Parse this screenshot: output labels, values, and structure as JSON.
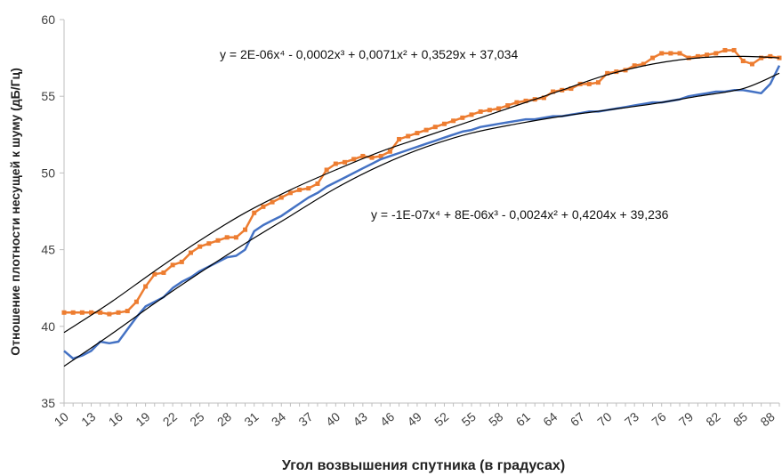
{
  "chart_data": {
    "type": "line",
    "xlabel": "Угол возвышения спутника (в градусах)",
    "ylabel": "Отношение плотности несущей к шуму (дБ/Гц)",
    "xlim": [
      10,
      89
    ],
    "ylim": [
      35,
      60
    ],
    "y_ticks": [
      35,
      40,
      45,
      50,
      55,
      60
    ],
    "x_tick_labels": [
      "10",
      "13",
      "16",
      "19",
      "22",
      "25",
      "28",
      "31",
      "34",
      "37",
      "40",
      "43",
      "46",
      "49",
      "52",
      "55",
      "58",
      "61",
      "64",
      "67",
      "70",
      "73",
      "76",
      "79",
      "82",
      "85",
      "88"
    ],
    "grid": false,
    "series": [
      {
        "color": "#ED7D31",
        "marker": "square",
        "points": [
          [
            10,
            40.9
          ],
          [
            11,
            40.9
          ],
          [
            12,
            40.9
          ],
          [
            13,
            40.9
          ],
          [
            14,
            40.9
          ],
          [
            15,
            40.8
          ],
          [
            16,
            40.9
          ],
          [
            17,
            41.0
          ],
          [
            18,
            41.6
          ],
          [
            19,
            42.6
          ],
          [
            20,
            43.4
          ],
          [
            21,
            43.5
          ],
          [
            22,
            44.0
          ],
          [
            23,
            44.2
          ],
          [
            24,
            44.8
          ],
          [
            25,
            45.2
          ],
          [
            26,
            45.4
          ],
          [
            27,
            45.6
          ],
          [
            28,
            45.8
          ],
          [
            29,
            45.8
          ],
          [
            30,
            46.3
          ],
          [
            31,
            47.4
          ],
          [
            32,
            47.8
          ],
          [
            33,
            48.1
          ],
          [
            34,
            48.4
          ],
          [
            35,
            48.7
          ],
          [
            36,
            48.9
          ],
          [
            37,
            49.0
          ],
          [
            38,
            49.3
          ],
          [
            39,
            50.2
          ],
          [
            40,
            50.6
          ],
          [
            41,
            50.7
          ],
          [
            42,
            50.9
          ],
          [
            43,
            51.1
          ],
          [
            44,
            51.0
          ],
          [
            45,
            51.1
          ],
          [
            46,
            51.4
          ],
          [
            47,
            52.2
          ],
          [
            48,
            52.4
          ],
          [
            49,
            52.6
          ],
          [
            50,
            52.8
          ],
          [
            51,
            53.0
          ],
          [
            52,
            53.2
          ],
          [
            53,
            53.4
          ],
          [
            54,
            53.6
          ],
          [
            55,
            53.8
          ],
          [
            56,
            54.0
          ],
          [
            57,
            54.1
          ],
          [
            58,
            54.2
          ],
          [
            59,
            54.4
          ],
          [
            60,
            54.6
          ],
          [
            61,
            54.7
          ],
          [
            62,
            54.8
          ],
          [
            63,
            54.9
          ],
          [
            64,
            55.3
          ],
          [
            65,
            55.4
          ],
          [
            66,
            55.5
          ],
          [
            67,
            55.8
          ],
          [
            68,
            55.8
          ],
          [
            69,
            55.9
          ],
          [
            70,
            56.5
          ],
          [
            71,
            56.6
          ],
          [
            72,
            56.7
          ],
          [
            73,
            57.0
          ],
          [
            74,
            57.1
          ],
          [
            75,
            57.5
          ],
          [
            76,
            57.8
          ],
          [
            77,
            57.8
          ],
          [
            78,
            57.8
          ],
          [
            79,
            57.5
          ],
          [
            80,
            57.6
          ],
          [
            81,
            57.7
          ],
          [
            82,
            57.8
          ],
          [
            83,
            58.0
          ],
          [
            84,
            58.0
          ],
          [
            85,
            57.3
          ],
          [
            86,
            57.1
          ],
          [
            87,
            57.5
          ],
          [
            88,
            57.6
          ],
          [
            89,
            57.5
          ]
        ]
      },
      {
        "color": "#4472C4",
        "marker": "none",
        "points": [
          [
            10,
            38.4
          ],
          [
            11,
            37.9
          ],
          [
            12,
            38.1
          ],
          [
            13,
            38.4
          ],
          [
            14,
            39.0
          ],
          [
            15,
            38.9
          ],
          [
            16,
            39.0
          ],
          [
            17,
            39.8
          ],
          [
            18,
            40.6
          ],
          [
            19,
            41.3
          ],
          [
            20,
            41.6
          ],
          [
            21,
            41.9
          ],
          [
            22,
            42.5
          ],
          [
            23,
            42.9
          ],
          [
            24,
            43.2
          ],
          [
            25,
            43.6
          ],
          [
            26,
            43.9
          ],
          [
            27,
            44.2
          ],
          [
            28,
            44.5
          ],
          [
            29,
            44.6
          ],
          [
            30,
            45.0
          ],
          [
            31,
            46.2
          ],
          [
            32,
            46.6
          ],
          [
            33,
            46.9
          ],
          [
            34,
            47.2
          ],
          [
            35,
            47.6
          ],
          [
            36,
            48.0
          ],
          [
            37,
            48.4
          ],
          [
            38,
            48.7
          ],
          [
            39,
            49.1
          ],
          [
            40,
            49.4
          ],
          [
            41,
            49.7
          ],
          [
            42,
            50.0
          ],
          [
            43,
            50.3
          ],
          [
            44,
            50.6
          ],
          [
            45,
            50.9
          ],
          [
            46,
            51.1
          ],
          [
            47,
            51.3
          ],
          [
            48,
            51.5
          ],
          [
            49,
            51.7
          ],
          [
            50,
            51.9
          ],
          [
            51,
            52.1
          ],
          [
            52,
            52.3
          ],
          [
            53,
            52.5
          ],
          [
            54,
            52.7
          ],
          [
            55,
            52.8
          ],
          [
            56,
            53.0
          ],
          [
            57,
            53.1
          ],
          [
            58,
            53.2
          ],
          [
            59,
            53.3
          ],
          [
            60,
            53.4
          ],
          [
            61,
            53.5
          ],
          [
            62,
            53.5
          ],
          [
            63,
            53.6
          ],
          [
            64,
            53.7
          ],
          [
            65,
            53.7
          ],
          [
            66,
            53.8
          ],
          [
            67,
            53.9
          ],
          [
            68,
            54.0
          ],
          [
            69,
            54.0
          ],
          [
            70,
            54.1
          ],
          [
            71,
            54.2
          ],
          [
            72,
            54.3
          ],
          [
            73,
            54.4
          ],
          [
            74,
            54.5
          ],
          [
            75,
            54.6
          ],
          [
            76,
            54.6
          ],
          [
            77,
            54.7
          ],
          [
            78,
            54.8
          ],
          [
            79,
            55.0
          ],
          [
            80,
            55.1
          ],
          [
            81,
            55.2
          ],
          [
            82,
            55.3
          ],
          [
            83,
            55.3
          ],
          [
            84,
            55.4
          ],
          [
            85,
            55.4
          ],
          [
            86,
            55.3
          ],
          [
            87,
            55.2
          ],
          [
            88,
            55.8
          ],
          [
            89,
            57.0
          ]
        ]
      }
    ],
    "trendlines": [
      {
        "equation": "y = 2E-06x⁴ - 0,0002x³ + 0,0071x² + 0,3529x + 37,034",
        "points": [
          [
            10,
            39.6
          ],
          [
            15,
            41.5
          ],
          [
            20,
            43.6
          ],
          [
            25,
            45.6
          ],
          [
            30,
            47.4
          ],
          [
            35,
            48.9
          ],
          [
            40,
            50.2
          ],
          [
            45,
            51.4
          ],
          [
            50,
            52.4
          ],
          [
            55,
            53.4
          ],
          [
            60,
            54.4
          ],
          [
            65,
            55.4
          ],
          [
            70,
            56.4
          ],
          [
            75,
            57.1
          ],
          [
            80,
            57.5
          ],
          [
            85,
            57.6
          ],
          [
            89,
            57.5
          ]
        ]
      },
      {
        "equation": "y = -1E-07x⁴ + 8E-06x³ - 0,0024x² + 0,4204x + 39,236",
        "points": [
          [
            10,
            37.4
          ],
          [
            15,
            39.4
          ],
          [
            20,
            41.5
          ],
          [
            25,
            43.5
          ],
          [
            30,
            45.4
          ],
          [
            35,
            47.2
          ],
          [
            40,
            49.0
          ],
          [
            45,
            50.5
          ],
          [
            50,
            51.7
          ],
          [
            55,
            52.6
          ],
          [
            60,
            53.2
          ],
          [
            65,
            53.7
          ],
          [
            70,
            54.1
          ],
          [
            75,
            54.5
          ],
          [
            80,
            55.0
          ],
          [
            85,
            55.5
          ],
          [
            89,
            56.5
          ]
        ]
      }
    ],
    "line_color": "#000000"
  }
}
